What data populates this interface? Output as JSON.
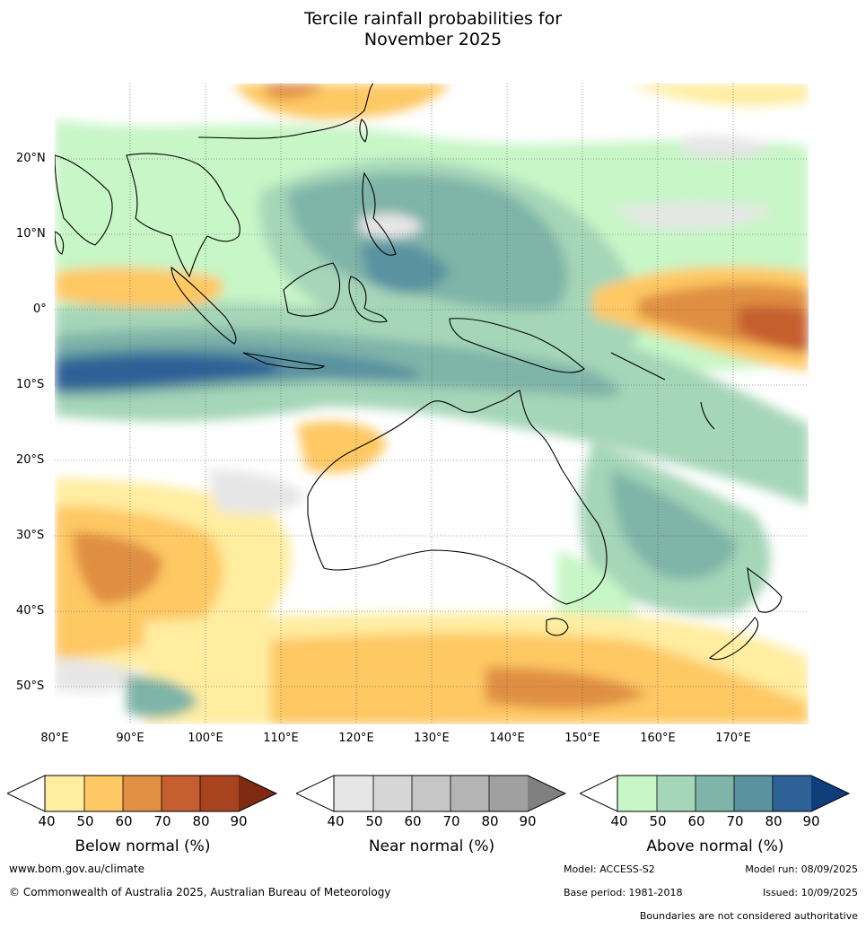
{
  "title_line1": "Tercile rainfall probabilities for",
  "title_line2": "November 2025",
  "lat_labels": [
    "20°N",
    "10°N",
    "0°",
    "10°S",
    "20°S",
    "30°S",
    "40°S",
    "50°S"
  ],
  "lon_labels": [
    "80°E",
    "90°E",
    "100°E",
    "110°E",
    "120°E",
    "130°E",
    "140°E",
    "150°E",
    "160°E",
    "170°E"
  ],
  "colorbars": [
    {
      "title": "Below normal (%)",
      "ticks": [
        "40",
        "50",
        "60",
        "70",
        "80",
        "90"
      ],
      "colors": [
        "#ffeda0",
        "#fec864",
        "#e08f43",
        "#c65f2f",
        "#a84320",
        "#7f2a13"
      ]
    },
    {
      "title": "Near normal (%)",
      "ticks": [
        "40",
        "50",
        "60",
        "70",
        "80",
        "90"
      ],
      "colors": [
        "#e6e6e6",
        "#d6d6d6",
        "#c6c6c6",
        "#b4b4b4",
        "#a0a0a0",
        "#808080"
      ]
    },
    {
      "title": "Above normal (%)",
      "ticks": [
        "40",
        "50",
        "60",
        "70",
        "80",
        "90"
      ],
      "colors": [
        "#c7f6c7",
        "#a5d6b8",
        "#7fb4a8",
        "#5a92a0",
        "#2e6196",
        "#0e3f7a"
      ]
    }
  ],
  "footer": {
    "website": "www.bom.gov.au/climate",
    "copyright": "© Commonwealth of Australia 2025, Australian Bureau of Meteorology",
    "model": "Model: ACCESS-S2",
    "model_run": "Model run: 08/09/2025",
    "base_period": "Base period: 1981-2018",
    "issued": "Issued: 10/09/2025",
    "boundaries_note": "Boundaries are not considered authoritative"
  }
}
